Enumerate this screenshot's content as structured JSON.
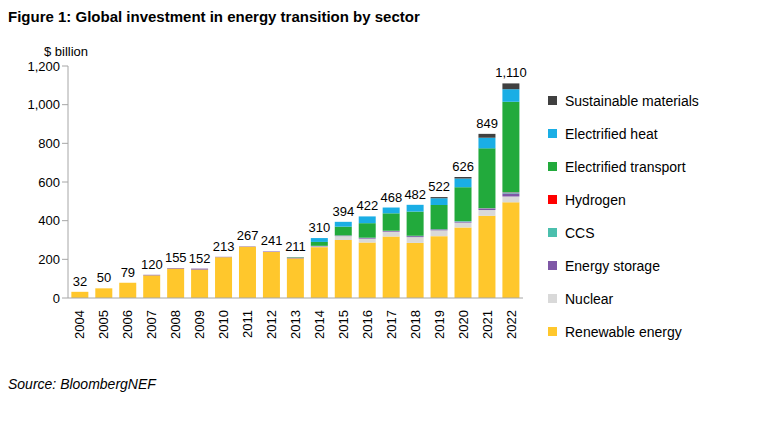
{
  "chart_data": {
    "type": "bar",
    "title": "Figure 1: Global investment in energy transition by sector",
    "y_label": "$ billion",
    "annotations": [
      "Source: BloombergNEF"
    ],
    "stacked": true,
    "grid": false,
    "legend": "right",
    "categories": [
      "2004",
      "2005",
      "2006",
      "2007",
      "2008",
      "2009",
      "2010",
      "2011",
      "2012",
      "2013",
      "2014",
      "2015",
      "2016",
      "2017",
      "2018",
      "2019",
      "2020",
      "2021",
      "2022"
    ],
    "ylim": [
      0,
      1200
    ],
    "yticks": [
      0,
      200,
      400,
      600,
      800,
      {
        "value": 1000,
        "label": "1,000"
      },
      {
        "value": 1200,
        "label": "1,200"
      }
    ],
    "series": [
      {
        "name": "Renewable energy",
        "color": "#FFC72C",
        "values": [
          32,
          50,
          79,
          117,
          152,
          147,
          211,
          265,
          238,
          205,
          263,
          300,
          287,
          318,
          285,
          320,
          365,
          425,
          495
        ]
      },
      {
        "name": "Nuclear",
        "color": "#D9D9D9",
        "values": [
          0,
          0,
          0,
          0,
          0,
          0,
          0,
          0,
          0,
          0,
          4,
          20,
          20,
          25,
          30,
          30,
          25,
          30,
          30
        ]
      },
      {
        "name": "Energy storage",
        "color": "#7E57A6",
        "values": [
          0,
          0,
          0,
          3,
          3,
          5,
          2,
          2,
          3,
          4,
          2,
          3,
          4,
          4,
          5,
          5,
          5,
          8,
          16
        ]
      },
      {
        "name": "CCS",
        "color": "#4BBFAD",
        "values": [
          0,
          0,
          0,
          0,
          0,
          0,
          0,
          0,
          0,
          0,
          1,
          1,
          1,
          1,
          2,
          1,
          3,
          2,
          6
        ]
      },
      {
        "name": "Hydrogen",
        "color": "#FF0000",
        "values": [
          0,
          0,
          0,
          0,
          0,
          0,
          0,
          0,
          0,
          0,
          0,
          0,
          0,
          0,
          0,
          0,
          0,
          1,
          1
        ]
      },
      {
        "name": "Electrified transport",
        "color": "#22AA3C",
        "values": [
          0,
          0,
          0,
          0,
          0,
          0,
          0,
          0,
          0,
          2,
          20,
          45,
          75,
          90,
          125,
          125,
          175,
          308,
          467
        ]
      },
      {
        "name": "Electrified heat",
        "color": "#1AAEE5",
        "values": [
          0,
          0,
          0,
          0,
          0,
          0,
          0,
          0,
          0,
          0,
          20,
          25,
          35,
          30,
          35,
          35,
          45,
          55,
          65
        ]
      },
      {
        "name": "Sustainable materials",
        "color": "#404040",
        "values": [
          0,
          0,
          0,
          0,
          0,
          0,
          0,
          0,
          0,
          0,
          0,
          0,
          0,
          0,
          0,
          6,
          8,
          20,
          30
        ]
      }
    ],
    "totals": [
      32,
      50,
      79,
      120,
      155,
      152,
      213,
      267,
      241,
      211,
      310,
      394,
      422,
      468,
      482,
      522,
      626,
      849,
      1110
    ],
    "total_labels": [
      "32",
      "50",
      "79",
      "120",
      "155",
      "152",
      "213",
      "267",
      "241",
      "211",
      "310",
      "394",
      "422",
      "468",
      "482",
      "522",
      "626",
      "849",
      "1,110"
    ]
  }
}
